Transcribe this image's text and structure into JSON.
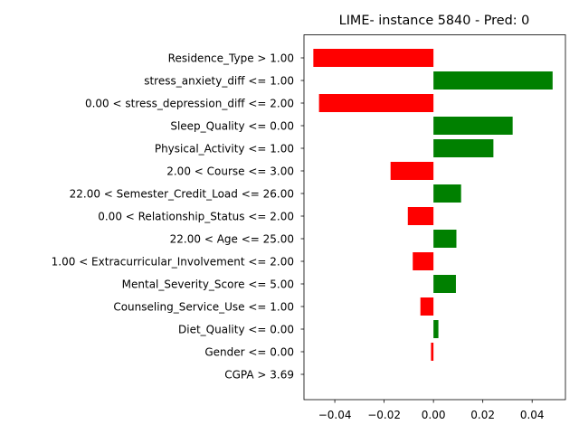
{
  "chart_data": {
    "type": "bar",
    "orientation": "horizontal",
    "title": "LIME- instance 5840 - Pred: 0",
    "xlabel": "",
    "ylabel": "",
    "xlim": [
      -0.0525,
      0.0535
    ],
    "xticks": [
      -0.04,
      -0.02,
      0.0,
      0.02,
      0.04
    ],
    "xtick_labels": [
      "−0.04",
      "−0.02",
      "0.00",
      "0.02",
      "0.04"
    ],
    "grid": false,
    "positive_color": "#008000",
    "negative_color": "#ff0000",
    "categories": [
      "Residence_Type > 1.00",
      "stress_anxiety_diff <= 1.00",
      "0.00 < stress_depression_diff <= 2.00",
      "Sleep_Quality <= 0.00",
      "Physical_Activity <= 1.00",
      "2.00 < Course <= 3.00",
      "22.00 < Semester_Credit_Load <= 26.00",
      "0.00 < Relationship_Status <= 2.00",
      "22.00 < Age <= 25.00",
      "1.00 < Extracurricular_Involvement <= 2.00",
      "Mental_Severity_Score <= 5.00",
      "Counseling_Service_Use <= 1.00",
      "Diet_Quality <= 0.00",
      "Gender <= 0.00",
      "CGPA > 3.69"
    ],
    "values": [
      -0.0487,
      0.0483,
      -0.0464,
      0.0321,
      0.0243,
      -0.0174,
      0.0112,
      -0.0104,
      0.0093,
      -0.0084,
      0.0091,
      -0.0053,
      0.002,
      -0.001,
      0.0
    ]
  }
}
